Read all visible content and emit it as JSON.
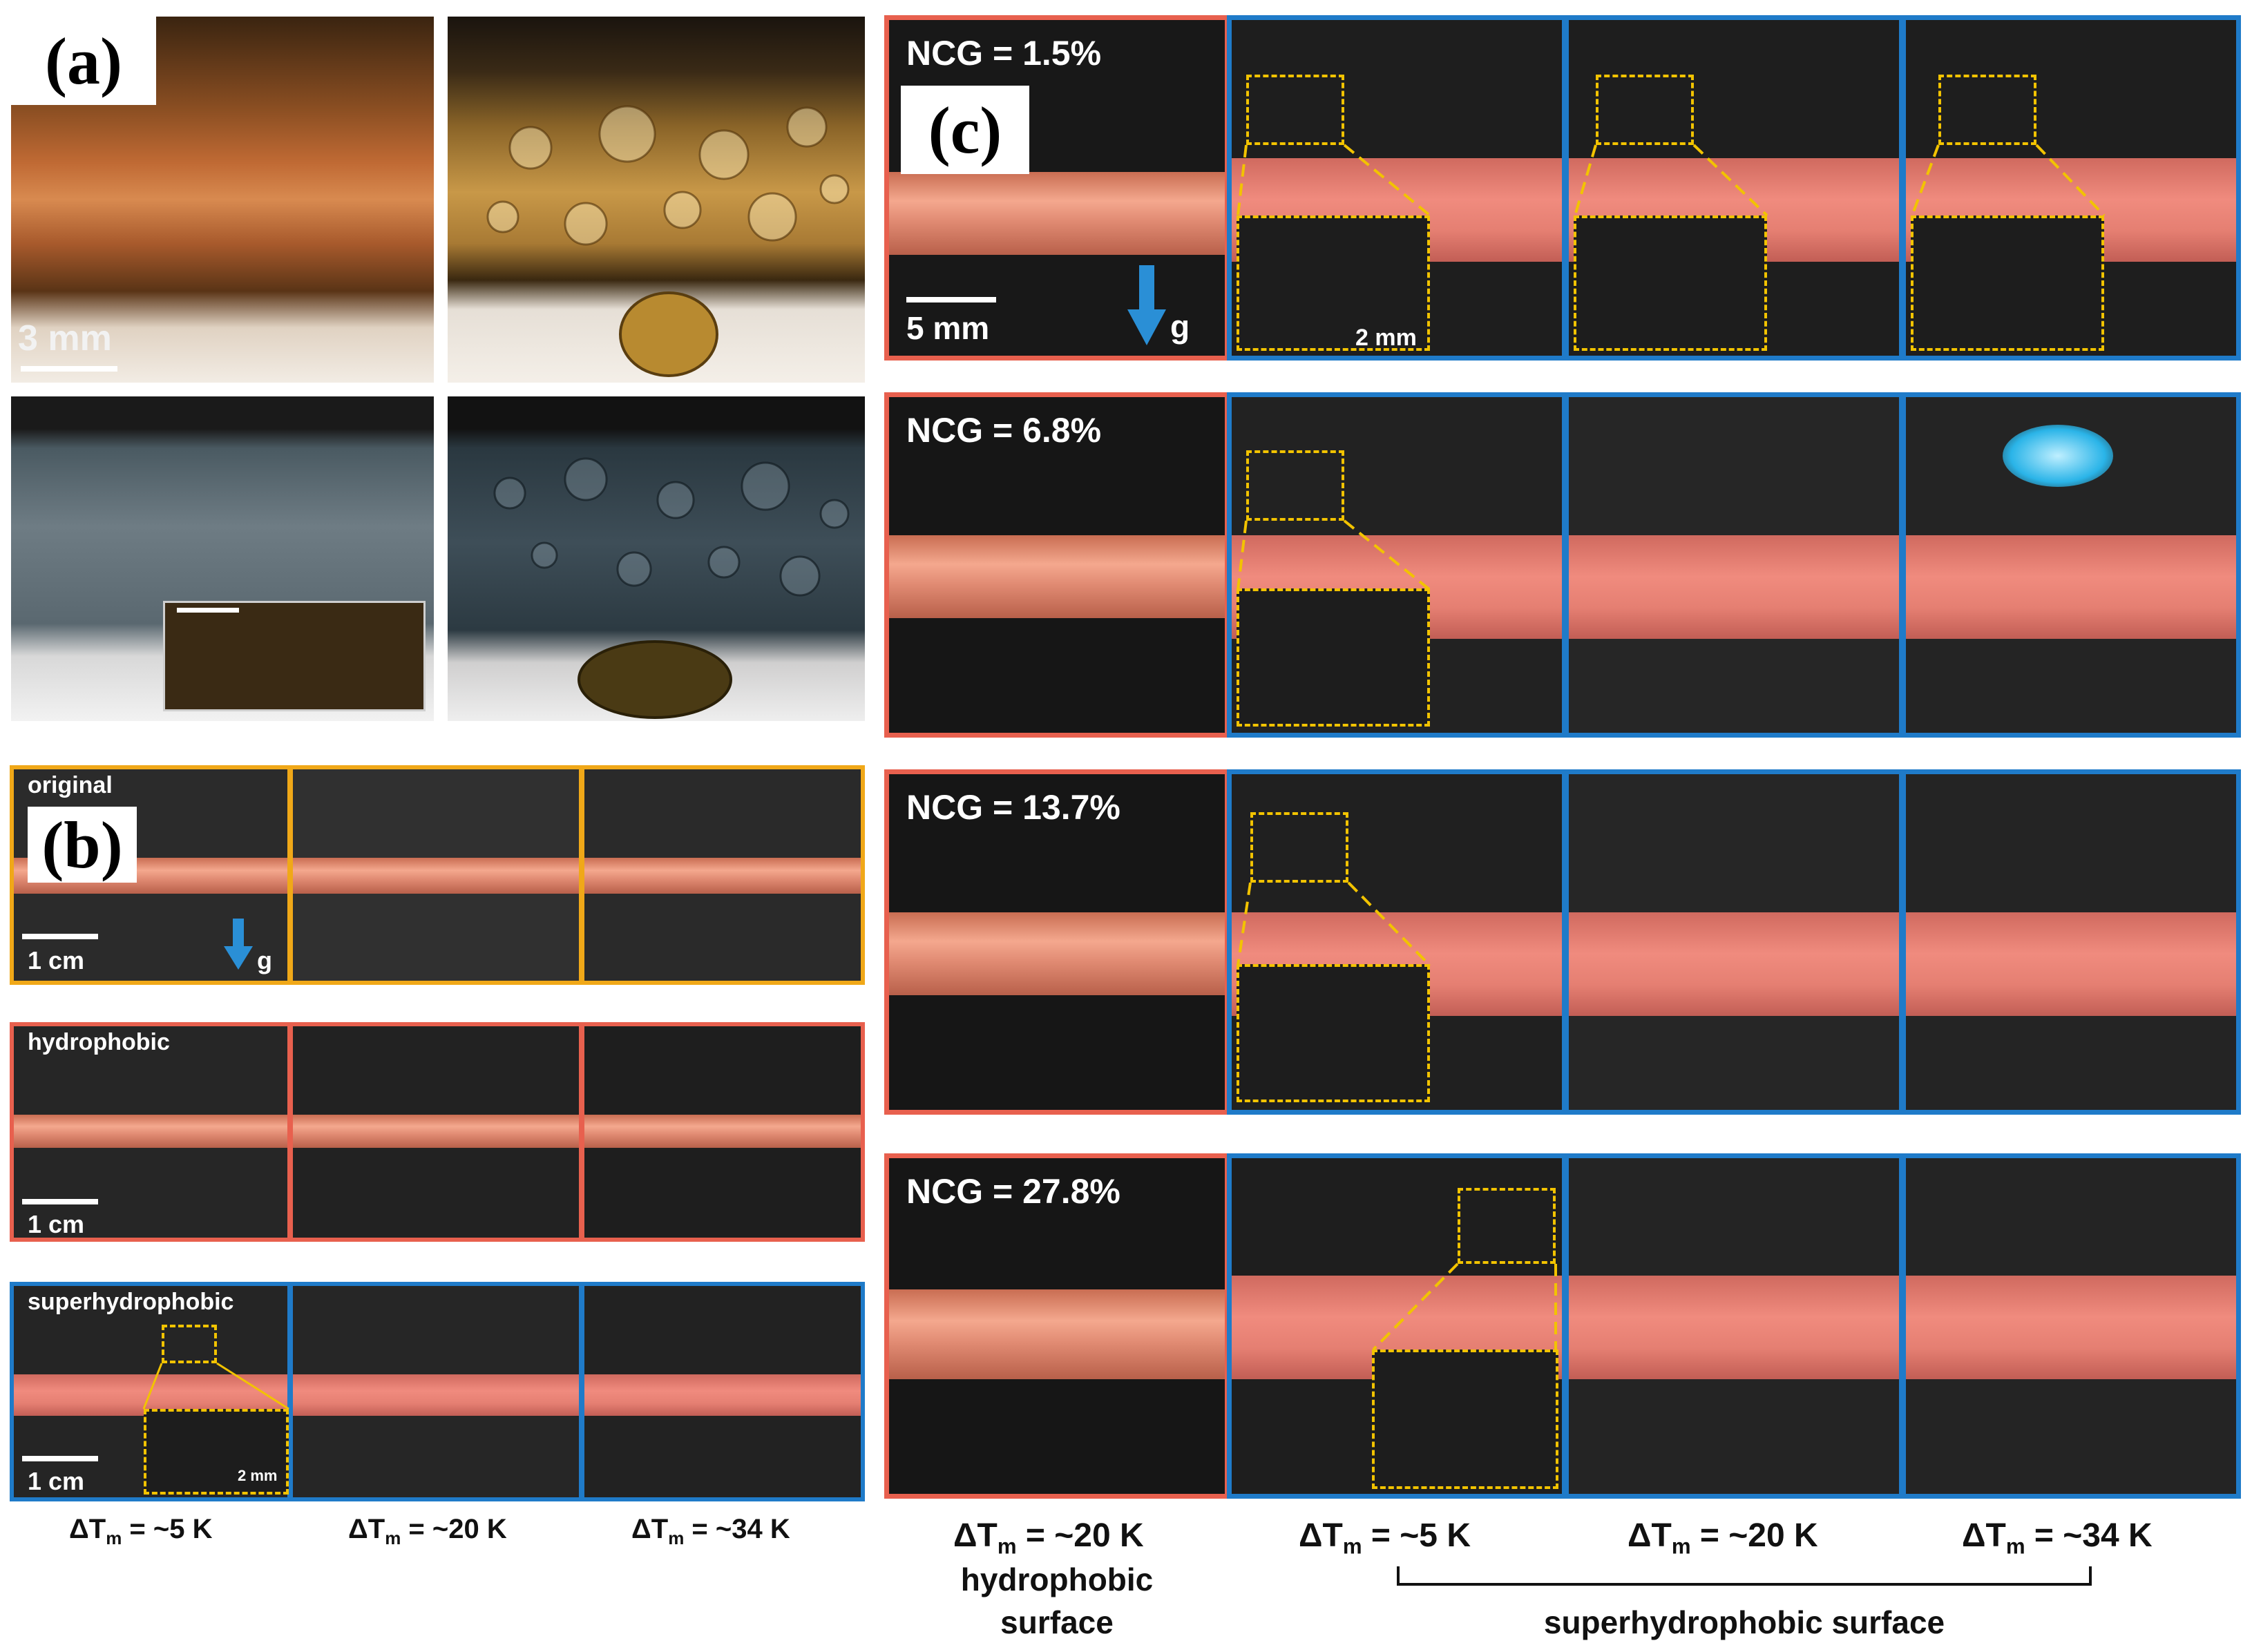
{
  "panels": {
    "a": {
      "letter": "(a)",
      "scale": "3 mm"
    },
    "b": {
      "letter": "(b)",
      "rows": [
        {
          "label": "original",
          "scale": "1 cm",
          "gravity": "g"
        },
        {
          "label": "hydrophobic",
          "scale": "1 cm"
        },
        {
          "label": "superhydrophobic",
          "scale": "1 cm",
          "inset_scale": "2 mm"
        }
      ],
      "dT_labels": [
        "~5 K",
        "~20 K",
        "~34 K"
      ]
    },
    "c": {
      "letter": "(c)",
      "rows": [
        {
          "ncg": "NCG = 1.5%",
          "scale": "5 mm",
          "gravity": "g",
          "inset_scale": "2 mm"
        },
        {
          "ncg": "NCG = 6.8%"
        },
        {
          "ncg": "NCG = 13.7%"
        },
        {
          "ncg": "NCG = 27.8%"
        }
      ],
      "dT_labels": [
        "~20 K",
        "~5 K",
        "~20 K",
        "~34 K"
      ],
      "captions": {
        "hydrophobic_1": "hydrophobic",
        "hydrophobic_2": "surface",
        "superhydrophobic": "superhydrophobic surface"
      }
    }
  },
  "dT_symbol": "ΔT",
  "dT_sub": "m",
  "dT_eq": " = ",
  "colors": {
    "orange_border": "#f0a818",
    "red_border": "#e8604e",
    "blue_border": "#1f7bc9",
    "inset_dash": "#f2c300",
    "arrow": "#2a8fd6"
  }
}
